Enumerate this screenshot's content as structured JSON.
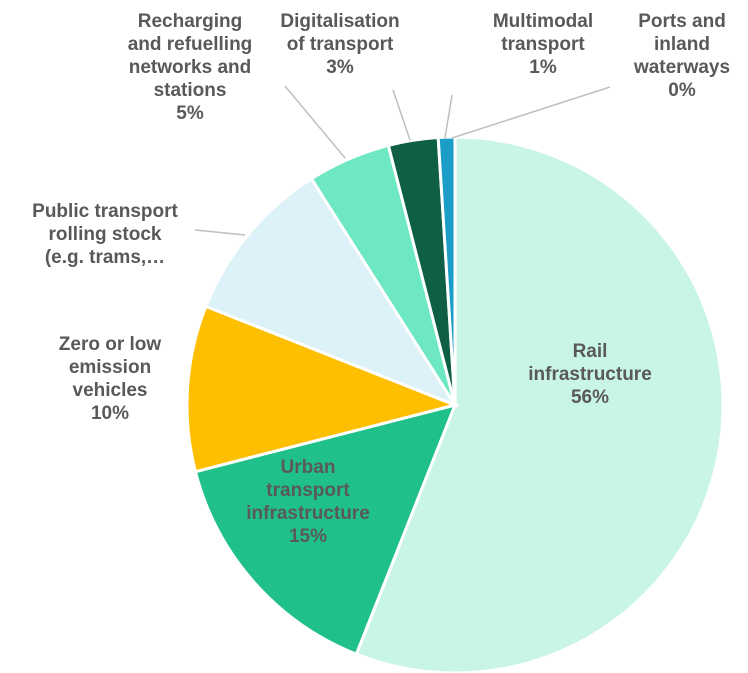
{
  "chart_data": {
    "type": "pie",
    "categories": [
      "Rail infrastructure",
      "Urban\ntransport\ninfrastructure",
      "Zero or low\nemission\nvehicles",
      "Public transport\nrolling stock\n(e.g. trams,…",
      "Recharging\nand refuelling\nnetworks and\nstations",
      "Digitalisation\nof transport",
      "Multimodal\ntransport",
      "Ports and\ninland\nwaterways"
    ],
    "values": [
      56,
      15,
      10,
      10,
      5,
      3,
      1,
      0
    ],
    "value_labels": [
      "56%",
      "15%",
      "10%",
      null,
      "5%",
      "3%",
      "1%",
      "0%"
    ],
    "colors": [
      "#c9f5e6",
      "#20c08a",
      "#fdbf00",
      "#ddf1f8",
      "#6de8c2",
      "#0f5e46",
      "#1a9dc7",
      "#5fb0d8"
    ]
  }
}
